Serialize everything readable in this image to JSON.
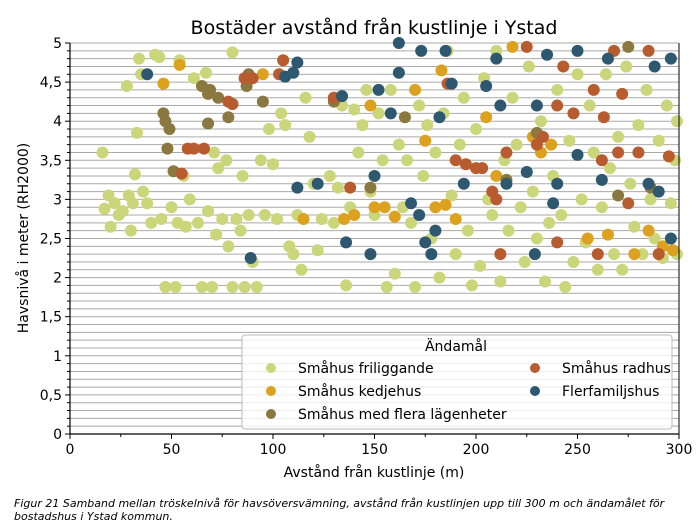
{
  "chart_data": {
    "type": "scatter",
    "title": "Bostäder avstånd från kustlinje i Ystad",
    "xlabel": "Avstånd från kustlinje (m)",
    "ylabel": "Havsnivå i meter (RH2000)",
    "xlim": [
      0,
      300
    ],
    "ylim": [
      0,
      5
    ],
    "xticks": [
      "0",
      "50",
      "100",
      "150",
      "200",
      "250",
      "300"
    ],
    "yticks": [
      "0",
      "0,5",
      "1",
      "1,5",
      "2",
      "2,5",
      "3",
      "3,5",
      "4",
      "4,5",
      "5"
    ],
    "grid": "horizontal, every 0.1",
    "legend": {
      "title": "Ändamål",
      "placement": "bottom-right"
    },
    "series": [
      {
        "name": "Småhus friliggande",
        "color": "#cbd67a",
        "points": [
          [
            17,
            2.88
          ],
          [
            16,
            3.6
          ],
          [
            19,
            3.05
          ],
          [
            20,
            2.65
          ],
          [
            22,
            2.95
          ],
          [
            24,
            2.8
          ],
          [
            26,
            2.85
          ],
          [
            28,
            4.45
          ],
          [
            29,
            3.05
          ],
          [
            30,
            2.6
          ],
          [
            31,
            2.95
          ],
          [
            32,
            3.32
          ],
          [
            33,
            3.85
          ],
          [
            34,
            4.8
          ],
          [
            35,
            4.6
          ],
          [
            36,
            3.1
          ],
          [
            38,
            2.95
          ],
          [
            40,
            2.7
          ],
          [
            42,
            4.85
          ],
          [
            44,
            4.82
          ],
          [
            45,
            2.75
          ],
          [
            47,
            1.88
          ],
          [
            50,
            2.9
          ],
          [
            52,
            1.88
          ],
          [
            53,
            2.7
          ],
          [
            54,
            4.78
          ],
          [
            56,
            3.3
          ],
          [
            57,
            2.65
          ],
          [
            59,
            3.0
          ],
          [
            61,
            4.55
          ],
          [
            63,
            2.7
          ],
          [
            65,
            1.88
          ],
          [
            67,
            4.62
          ],
          [
            68,
            2.85
          ],
          [
            70,
            1.88
          ],
          [
            71,
            3.6
          ],
          [
            72,
            2.55
          ],
          [
            73,
            3.4
          ],
          [
            75,
            2.75
          ],
          [
            77,
            3.5
          ],
          [
            78,
            2.4
          ],
          [
            80,
            1.88
          ],
          [
            80,
            4.88
          ],
          [
            82,
            2.75
          ],
          [
            84,
            2.6
          ],
          [
            85,
            3.3
          ],
          [
            86,
            1.88
          ],
          [
            88,
            2.8
          ],
          [
            90,
            2.2
          ],
          [
            92,
            1.88
          ],
          [
            94,
            3.5
          ],
          [
            96,
            2.8
          ],
          [
            98,
            3.9
          ],
          [
            100,
            3.45
          ],
          [
            102,
            2.75
          ],
          [
            104,
            4.1
          ],
          [
            106,
            3.95
          ],
          [
            108,
            2.4
          ],
          [
            110,
            2.3
          ],
          [
            112,
            2.8
          ],
          [
            114,
            2.1
          ],
          [
            116,
            4.3
          ],
          [
            118,
            3.8
          ],
          [
            120,
            3.2
          ],
          [
            122,
            2.35
          ],
          [
            124,
            2.75
          ],
          [
            128,
            3.3
          ],
          [
            130,
            2.7
          ],
          [
            132,
            3.15
          ],
          [
            134,
            4.2
          ],
          [
            136,
            1.9
          ],
          [
            138,
            2.9
          ],
          [
            140,
            4.15
          ],
          [
            142,
            3.6
          ],
          [
            144,
            3.95
          ],
          [
            146,
            4.4
          ],
          [
            148,
            3.1
          ],
          [
            150,
            2.8
          ],
          [
            152,
            4.1
          ],
          [
            154,
            3.5
          ],
          [
            156,
            1.88
          ],
          [
            158,
            4.4
          ],
          [
            160,
            2.05
          ],
          [
            162,
            3.7
          ],
          [
            164,
            2.9
          ],
          [
            166,
            3.5
          ],
          [
            168,
            2.7
          ],
          [
            170,
            1.88
          ],
          [
            172,
            4.2
          ],
          [
            174,
            3.3
          ],
          [
            176,
            3.95
          ],
          [
            178,
            2.5
          ],
          [
            180,
            3.6
          ],
          [
            182,
            2.0
          ],
          [
            184,
            4.1
          ],
          [
            186,
            4.9
          ],
          [
            188,
            3.05
          ],
          [
            190,
            2.3
          ],
          [
            192,
            3.7
          ],
          [
            194,
            4.3
          ],
          [
            196,
            2.6
          ],
          [
            198,
            1.9
          ],
          [
            200,
            3.9
          ],
          [
            202,
            2.15
          ],
          [
            204,
            4.55
          ],
          [
            206,
            3.0
          ],
          [
            208,
            2.8
          ],
          [
            210,
            4.9
          ],
          [
            212,
            1.95
          ],
          [
            214,
            3.5
          ],
          [
            216,
            2.6
          ],
          [
            218,
            4.3
          ],
          [
            220,
            3.7
          ],
          [
            222,
            2.9
          ],
          [
            224,
            2.2
          ],
          [
            226,
            4.7
          ],
          [
            228,
            3.1
          ],
          [
            230,
            2.5
          ],
          [
            232,
            4.0
          ],
          [
            234,
            1.95
          ],
          [
            236,
            2.7
          ],
          [
            238,
            3.3
          ],
          [
            240,
            4.4
          ],
          [
            242,
            2.8
          ],
          [
            244,
            1.88
          ],
          [
            246,
            3.75
          ],
          [
            248,
            2.2
          ],
          [
            250,
            4.6
          ],
          [
            252,
            3.0
          ],
          [
            254,
            2.45
          ],
          [
            256,
            4.2
          ],
          [
            258,
            3.6
          ],
          [
            260,
            2.1
          ],
          [
            262,
            2.9
          ],
          [
            264,
            4.6
          ],
          [
            266,
            3.4
          ],
          [
            268,
            2.3
          ],
          [
            270,
            3.8
          ],
          [
            272,
            2.1
          ],
          [
            274,
            4.7
          ],
          [
            276,
            3.2
          ],
          [
            278,
            2.65
          ],
          [
            280,
            3.95
          ],
          [
            282,
            2.3
          ],
          [
            284,
            4.4
          ],
          [
            286,
            3.0
          ],
          [
            288,
            2.5
          ],
          [
            290,
            3.75
          ],
          [
            292,
            2.25
          ],
          [
            294,
            4.2
          ],
          [
            296,
            2.95
          ],
          [
            298,
            3.5
          ],
          [
            299,
            2.3
          ],
          [
            299,
            4.0
          ]
        ]
      },
      {
        "name": "Småhus kedjehus",
        "color": "#dca21f",
        "points": [
          [
            46,
            4.48
          ],
          [
            54,
            4.72
          ],
          [
            95,
            4.6
          ],
          [
            115,
            2.75
          ],
          [
            130,
            4.3
          ],
          [
            135,
            2.75
          ],
          [
            140,
            2.8
          ],
          [
            148,
            4.2
          ],
          [
            150,
            2.9
          ],
          [
            155,
            2.9
          ],
          [
            160,
            2.78
          ],
          [
            170,
            4.4
          ],
          [
            175,
            3.75
          ],
          [
            180,
            2.9
          ],
          [
            183,
            4.65
          ],
          [
            185,
            2.93
          ],
          [
            190,
            2.75
          ],
          [
            205,
            4.05
          ],
          [
            210,
            3.3
          ],
          [
            218,
            4.95
          ],
          [
            228,
            3.8
          ],
          [
            232,
            3.6
          ],
          [
            237,
            3.7
          ],
          [
            255,
            2.5
          ],
          [
            265,
            2.55
          ],
          [
            278,
            2.3
          ],
          [
            285,
            2.6
          ],
          [
            292,
            2.4
          ],
          [
            297,
            2.35
          ]
        ]
      },
      {
        "name": "Småhus med flera lägenheter",
        "color": "#8b7840",
        "points": [
          [
            46,
            4.1
          ],
          [
            47,
            4.0
          ],
          [
            48,
            3.65
          ],
          [
            49,
            3.9
          ],
          [
            51,
            3.36
          ],
          [
            65,
            4.45
          ],
          [
            68,
            4.35
          ],
          [
            68,
            3.97
          ],
          [
            69,
            4.4
          ],
          [
            73,
            4.3
          ],
          [
            78,
            4.05
          ],
          [
            80,
            4.22
          ],
          [
            87,
            4.45
          ],
          [
            88,
            4.6
          ],
          [
            95,
            4.25
          ],
          [
            130,
            4.25
          ],
          [
            148,
            3.15
          ],
          [
            165,
            4.05
          ],
          [
            215,
            3.25
          ],
          [
            230,
            3.85
          ],
          [
            270,
            3.05
          ],
          [
            275,
            4.95
          ],
          [
            286,
            3.15
          ]
        ]
      },
      {
        "name": "Småhus radhus",
        "color": "#b85c30",
        "points": [
          [
            55,
            3.33
          ],
          [
            58,
            3.65
          ],
          [
            61,
            3.65
          ],
          [
            66,
            3.65
          ],
          [
            78,
            4.25
          ],
          [
            80,
            4.22
          ],
          [
            86,
            4.55
          ],
          [
            90,
            4.55
          ],
          [
            103,
            4.6
          ],
          [
            105,
            4.78
          ],
          [
            130,
            4.3
          ],
          [
            138,
            3.15
          ],
          [
            186,
            4.48
          ],
          [
            190,
            3.5
          ],
          [
            195,
            3.45
          ],
          [
            200,
            3.4
          ],
          [
            203,
            3.4
          ],
          [
            208,
            3.1
          ],
          [
            210,
            3.0
          ],
          [
            212,
            2.3
          ],
          [
            215,
            3.6
          ],
          [
            225,
            4.95
          ],
          [
            230,
            3.7
          ],
          [
            233,
            3.8
          ],
          [
            240,
            4.2
          ],
          [
            240,
            2.45
          ],
          [
            243,
            4.7
          ],
          [
            248,
            4.1
          ],
          [
            258,
            4.4
          ],
          [
            260,
            2.3
          ],
          [
            262,
            3.5
          ],
          [
            263,
            4.05
          ],
          [
            268,
            4.9
          ],
          [
            270,
            3.6
          ],
          [
            272,
            4.35
          ],
          [
            275,
            2.95
          ],
          [
            280,
            3.6
          ],
          [
            285,
            4.9
          ],
          [
            290,
            2.3
          ],
          [
            295,
            3.55
          ]
        ]
      },
      {
        "name": "Flerfamiljshus",
        "color": "#2e5870",
        "points": [
          [
            38,
            4.6
          ],
          [
            89,
            2.25
          ],
          [
            106,
            4.57
          ],
          [
            110,
            4.62
          ],
          [
            112,
            3.15
          ],
          [
            112,
            4.75
          ],
          [
            122,
            3.2
          ],
          [
            134,
            4.32
          ],
          [
            136,
            2.45
          ],
          [
            148,
            2.3
          ],
          [
            150,
            3.3
          ],
          [
            152,
            4.4
          ],
          [
            158,
            4.1
          ],
          [
            162,
            5.0
          ],
          [
            162,
            4.62
          ],
          [
            168,
            2.95
          ],
          [
            172,
            2.8
          ],
          [
            173,
            4.9
          ],
          [
            175,
            2.45
          ],
          [
            178,
            2.3
          ],
          [
            180,
            2.6
          ],
          [
            182,
            4.05
          ],
          [
            185,
            4.9
          ],
          [
            188,
            4.48
          ],
          [
            194,
            3.2
          ],
          [
            205,
            4.45
          ],
          [
            210,
            4.8
          ],
          [
            212,
            4.2
          ],
          [
            215,
            3.2
          ],
          [
            225,
            3.35
          ],
          [
            229,
            2.3
          ],
          [
            230,
            4.2
          ],
          [
            235,
            4.85
          ],
          [
            238,
            2.95
          ],
          [
            240,
            3.2
          ],
          [
            250,
            3.57
          ],
          [
            250,
            4.9
          ],
          [
            262,
            3.25
          ],
          [
            265,
            4.8
          ],
          [
            285,
            3.2
          ],
          [
            288,
            4.7
          ],
          [
            290,
            3.1
          ],
          [
            296,
            4.8
          ],
          [
            296,
            2.5
          ]
        ]
      }
    ]
  },
  "caption": "Figur 21 Samband mellan tröskelnivå för havsöversvämning, avstånd från kustlinjen upp till 300 m och ändamålet för bostadshus i Ystad kommun."
}
